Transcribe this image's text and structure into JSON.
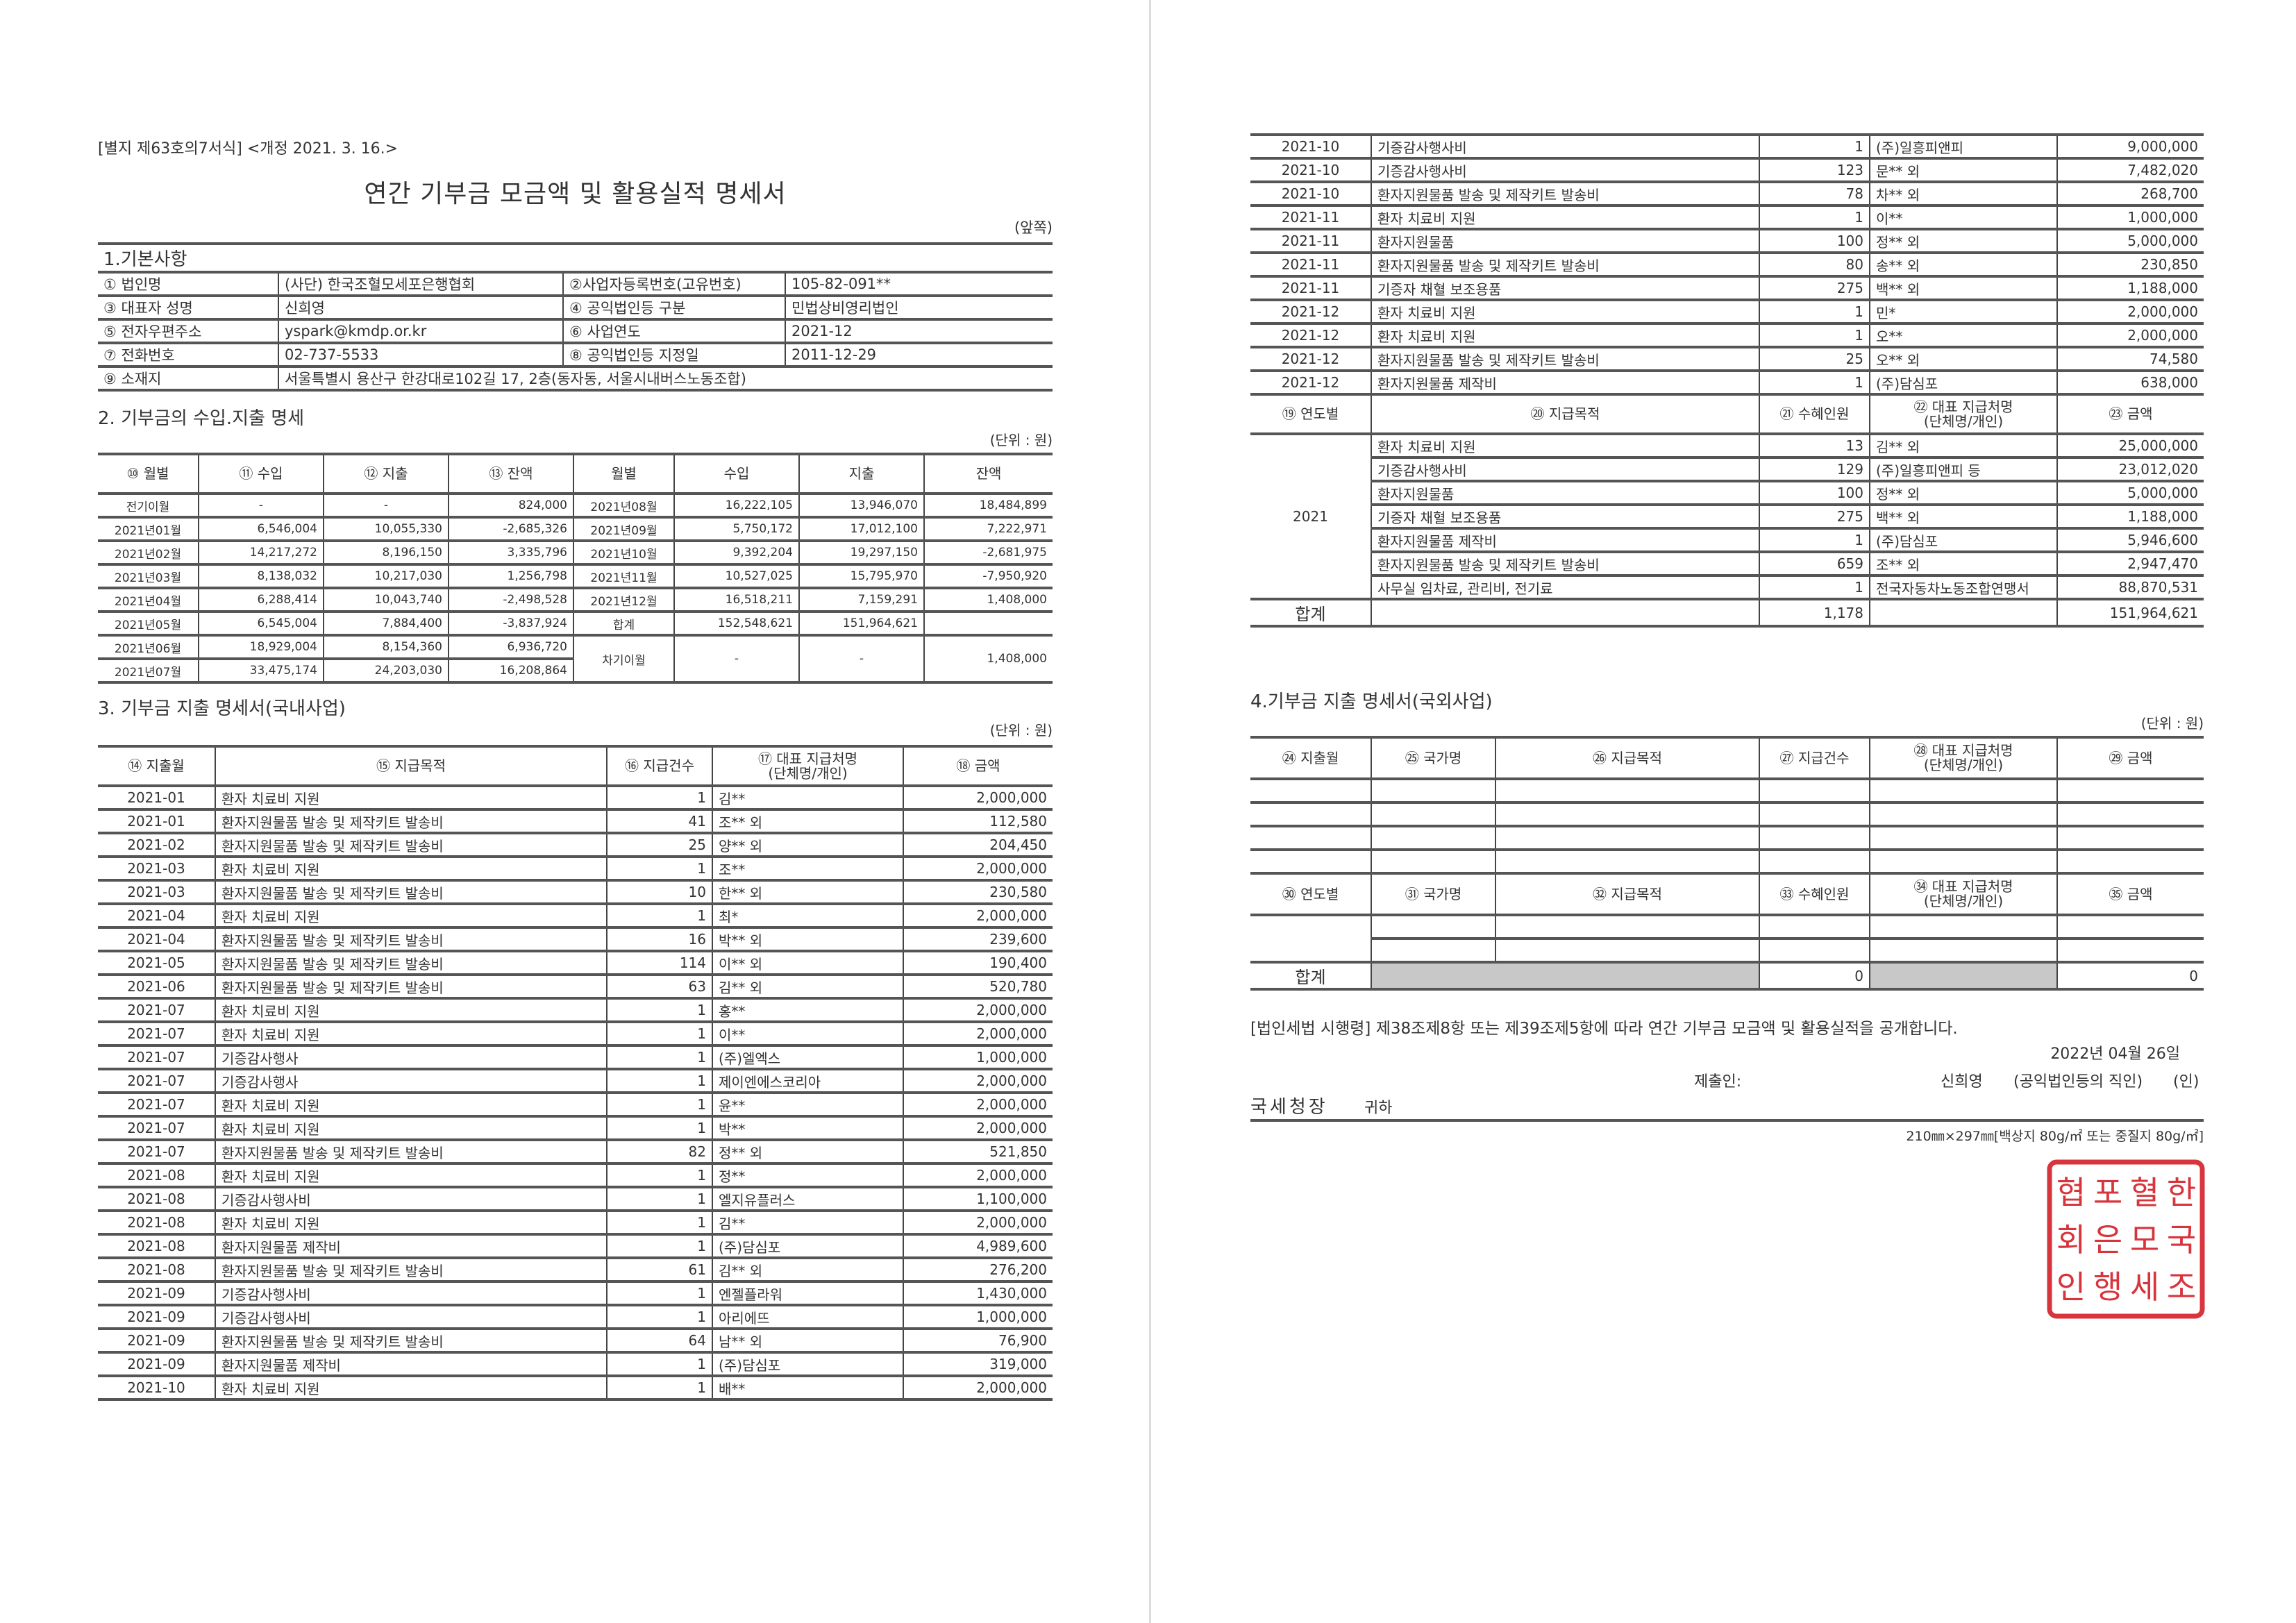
{
  "header": {
    "form_ref": "[별지 제63호의7서식] <개정 2021. 3. 16.>",
    "title": "연간 기부금 모금액 및 활용실적 명세서",
    "side": "(앞쪽)"
  },
  "section1": {
    "title": "1.기본사항",
    "rows": [
      {
        "l1": "① 법인명",
        "v1": "(사단) 한국조혈모세포은행협회",
        "l2": "②사업자등록번호(고유번호)",
        "v2": "105-82-091**"
      },
      {
        "l1": "③ 대표자 성명",
        "v1": "신희영",
        "l2": "④ 공익법인등 구분",
        "v2": "민법상비영리법인"
      },
      {
        "l1": "⑤ 전자우편주소",
        "v1": "yspark@kmdp.or.kr",
        "l2": "⑥ 사업연도",
        "v2": "2021-12"
      },
      {
        "l1": "⑦ 전화번호",
        "v1": "02-737-5533",
        "l2": "⑧ 공익법인등 지정일",
        "v2": "2011-12-29"
      }
    ],
    "address_label": "⑨ 소재지",
    "address": "서울특별시 용산구 한강대로102길 17, 2층(동자동, 서울시내버스노동조합)"
  },
  "section2": {
    "title": "2. 기부금의 수입.지출 명세",
    "unit": "(단위 : 원)",
    "headers": [
      "⑩ 월별",
      "⑪ 수입",
      "⑫ 지출",
      "⑬ 잔액",
      "월별",
      "수입",
      "지출",
      "잔액"
    ],
    "left_rows": [
      [
        "전기이월",
        "-",
        "-",
        "824,000"
      ],
      [
        "2021년01월",
        "6,546,004",
        "10,055,330",
        "-2,685,326"
      ],
      [
        "2021년02월",
        "14,217,272",
        "8,196,150",
        "3,335,796"
      ],
      [
        "2021년03월",
        "8,138,032",
        "10,217,030",
        "1,256,798"
      ],
      [
        "2021년04월",
        "6,288,414",
        "10,043,740",
        "-2,498,528"
      ],
      [
        "2021년05월",
        "6,545,004",
        "7,884,400",
        "-3,837,924"
      ],
      [
        "2021년06월",
        "18,929,004",
        "8,154,360",
        "6,936,720"
      ],
      [
        "2021년07월",
        "33,475,174",
        "24,203,030",
        "16,208,864"
      ]
    ],
    "right_rows": [
      [
        "2021년08월",
        "16,222,105",
        "13,946,070",
        "18,484,899"
      ],
      [
        "2021년09월",
        "5,750,172",
        "17,012,100",
        "7,222,971"
      ],
      [
        "2021년10월",
        "9,392,204",
        "19,297,150",
        "-2,681,975"
      ],
      [
        "2021년11월",
        "10,527,025",
        "15,795,970",
        "-7,950,920"
      ],
      [
        "2021년12월",
        "16,518,211",
        "7,159,291",
        "1,408,000"
      ],
      [
        "합계",
        "152,548,621",
        "151,964,621",
        ""
      ],
      [
        "차기이월",
        "-",
        "-",
        "1,408,000"
      ]
    ]
  },
  "section3": {
    "title": "3. 기부금 지출 명세서(국내사업)",
    "unit": "(단위 : 원)",
    "headers": [
      "⑭ 지출월",
      "⑮ 지급목적",
      "⑯ 지급건수",
      "⑰ 대표 지급처명\n(단체명/개인)",
      "⑱ 금액"
    ],
    "rows_left": [
      [
        "2021-01",
        "환자 치료비 지원",
        "1",
        "김**",
        "2,000,000"
      ],
      [
        "2021-01",
        "환자지원물품 발송 및 제작키트 발송비",
        "41",
        "조** 외",
        "112,580"
      ],
      [
        "2021-02",
        "환자지원물품 발송 및 제작키트 발송비",
        "25",
        "양** 외",
        "204,450"
      ],
      [
        "2021-03",
        "환자 치료비 지원",
        "1",
        "조**",
        "2,000,000"
      ],
      [
        "2021-03",
        "환자지원물품 발송 및 제작키트 발송비",
        "10",
        "한** 외",
        "230,580"
      ],
      [
        "2021-04",
        "환자 치료비 지원",
        "1",
        "최*",
        "2,000,000"
      ],
      [
        "2021-04",
        "환자지원물품 발송 및 제작키트 발송비",
        "16",
        "박** 외",
        "239,600"
      ],
      [
        "2021-05",
        "환자지원물품 발송 및 제작키트 발송비",
        "114",
        "이** 외",
        "190,400"
      ],
      [
        "2021-06",
        "환자지원물품 발송 및 제작키트 발송비",
        "63",
        "김** 외",
        "520,780"
      ],
      [
        "2021-07",
        "환자 치료비 지원",
        "1",
        "홍**",
        "2,000,000"
      ],
      [
        "2021-07",
        "환자 치료비 지원",
        "1",
        "이**",
        "2,000,000"
      ],
      [
        "2021-07",
        "기증감사행사",
        "1",
        "(주)엘엑스",
        "1,000,000"
      ],
      [
        "2021-07",
        "기증감사행사",
        "1",
        "제이엔에스코리아",
        "2,000,000"
      ],
      [
        "2021-07",
        "환자 치료비 지원",
        "1",
        "윤**",
        "2,000,000"
      ],
      [
        "2021-07",
        "환자 치료비 지원",
        "1",
        "박**",
        "2,000,000"
      ],
      [
        "2021-07",
        "환자지원물품 발송 및 제작키트 발송비",
        "82",
        "정** 외",
        "521,850"
      ],
      [
        "2021-08",
        "환자 치료비 지원",
        "1",
        "정**",
        "2,000,000"
      ],
      [
        "2021-08",
        "기증감사행사비",
        "1",
        "엘지유플러스",
        "1,100,000"
      ],
      [
        "2021-08",
        "환자 치료비 지원",
        "1",
        "김**",
        "2,000,000"
      ],
      [
        "2021-08",
        "환자지원물품 제작비",
        "1",
        "(주)담심포",
        "4,989,600"
      ],
      [
        "2021-08",
        "환자지원물품 발송 및 제작키트 발송비",
        "61",
        "김** 외",
        "276,200"
      ],
      [
        "2021-09",
        "기증감사행사비",
        "1",
        "엔젤플라워",
        "1,430,000"
      ],
      [
        "2021-09",
        "기증감사행사비",
        "1",
        "아리에뜨",
        "1,000,000"
      ],
      [
        "2021-09",
        "환자지원물품 발송 및 제작키트 발송비",
        "64",
        "남** 외",
        "76,900"
      ],
      [
        "2021-09",
        "환자지원물품 제작비",
        "1",
        "(주)담심포",
        "319,000"
      ],
      [
        "2021-10",
        "환자 치료비 지원",
        "1",
        "배**",
        "2,000,000"
      ]
    ],
    "rows_right": [
      [
        "2021-10",
        "기증감사행사비",
        "1",
        "(주)일흥피앤피",
        "9,000,000"
      ],
      [
        "2021-10",
        "기증감사행사비",
        "123",
        "문** 외",
        "7,482,020"
      ],
      [
        "2021-10",
        "환자지원물품 발송 및 제작키트 발송비",
        "78",
        "차** 외",
        "268,700"
      ],
      [
        "2021-11",
        "환자 치료비 지원",
        "1",
        "이**",
        "1,000,000"
      ],
      [
        "2021-11",
        "환자지원물품",
        "100",
        "정** 외",
        "5,000,000"
      ],
      [
        "2021-11",
        "환자지원물품 발송 및 제작키트 발송비",
        "80",
        "송** 외",
        "230,850"
      ],
      [
        "2021-11",
        "기증자 채혈 보조용품",
        "275",
        "백** 외",
        "1,188,000"
      ],
      [
        "2021-12",
        "환자 치료비 지원",
        "1",
        "민*",
        "2,000,000"
      ],
      [
        "2021-12",
        "환자 치료비 지원",
        "1",
        "오**",
        "2,000,000"
      ],
      [
        "2021-12",
        "환자지원물품 발송 및 제작키트 발송비",
        "25",
        "오** 외",
        "74,580"
      ],
      [
        "2021-12",
        "환자지원물품 제작비",
        "1",
        "(주)담심포",
        "638,000"
      ]
    ],
    "summary_headers": [
      "⑲ 연도별",
      "⑳ 지급목적",
      "㉑ 수혜인원",
      "㉒ 대표 지급처명\n(단체명/개인)",
      "㉓ 금액"
    ],
    "summary_year": "2021",
    "summary_rows": [
      [
        "환자 치료비 지원",
        "13",
        "김** 외",
        "25,000,000"
      ],
      [
        "기증감사행사비",
        "129",
        "(주)일흥피앤피 등",
        "23,012,020"
      ],
      [
        "환자지원물품",
        "100",
        "정** 외",
        "5,000,000"
      ],
      [
        "기증자 채혈 보조용품",
        "275",
        "백** 외",
        "1,188,000"
      ],
      [
        "환자지원물품 제작비",
        "1",
        "(주)담심포",
        "5,946,600"
      ],
      [
        "환자지원물품 발송 및 제작키트 발송비",
        "659",
        "조** 외",
        "2,947,470"
      ],
      [
        "사무실 임차료, 관리비, 전기료",
        "1",
        "전국자동차노동조합연맹서",
        "88,870,531"
      ]
    ],
    "total": {
      "label": "합계",
      "count": "1,178",
      "amount": "151,964,621"
    }
  },
  "section4": {
    "title": "4.기부금 지출 명세서(국외사업)",
    "unit": "(단위 : 원)",
    "headers": [
      "㉔ 지출월",
      "㉕ 국가명",
      "㉖ 지급목적",
      "㉗ 지급건수",
      "㉘ 대표 지급처명\n(단체명/개인)",
      "㉙ 금액"
    ],
    "summary_headers": [
      "㉚ 연도별",
      "㉛ 국가명",
      "㉜ 지급목적",
      "㉝ 수혜인원",
      "㉞ 대표 지급처명\n(단체명/개인)",
      "㉟ 금액"
    ],
    "total": {
      "label": "합계",
      "count": "0",
      "amount": "0"
    }
  },
  "footer": {
    "declaration": "[법인세법 시행령] 제38조제8항 또는 제39조제5항에 따라 연간 기부금 모금액 및 활용실적을 공개합니다.",
    "date": "2022년  04월  26일",
    "submitter_label": "제출인:",
    "submitter_name": "신희영",
    "submitter_role": "(공익법인등의 직인)",
    "seal_mark": "(인)",
    "recipient": "국세청장",
    "recipient_suffix": "귀하",
    "paper_size": "210㎜×297㎜[백상지 80g/㎡ 또는 중질지 80g/㎡]"
  },
  "stamp": {
    "text": "한국조혈모세포은행협회인",
    "color": "#d8343c"
  }
}
